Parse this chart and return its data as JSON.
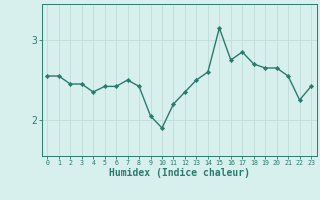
{
  "x": [
    0,
    1,
    2,
    3,
    4,
    5,
    6,
    7,
    8,
    9,
    10,
    11,
    12,
    13,
    14,
    15,
    16,
    17,
    18,
    19,
    20,
    21,
    22,
    23
  ],
  "y": [
    2.55,
    2.55,
    2.45,
    2.45,
    2.35,
    2.42,
    2.42,
    2.5,
    2.42,
    2.05,
    1.9,
    2.2,
    2.35,
    2.5,
    2.6,
    3.15,
    2.75,
    2.85,
    2.7,
    2.65,
    2.65,
    2.55,
    2.25,
    2.42
  ],
  "line_color": "#2a7a6e",
  "marker": "D",
  "marker_size": 2.2,
  "line_width": 1.0,
  "xlabel": "Humidex (Indice chaleur)",
  "xlabel_fontsize": 7,
  "xlim": [
    -0.5,
    23.5
  ],
  "ylim": [
    1.55,
    3.45
  ],
  "bg_color": "#d7f0ee",
  "grid_color": "#c0dbd8",
  "tick_color": "#2a7a6e",
  "ytick_labels": [
    "2",
    "3"
  ],
  "ytick_values": [
    2,
    3
  ]
}
